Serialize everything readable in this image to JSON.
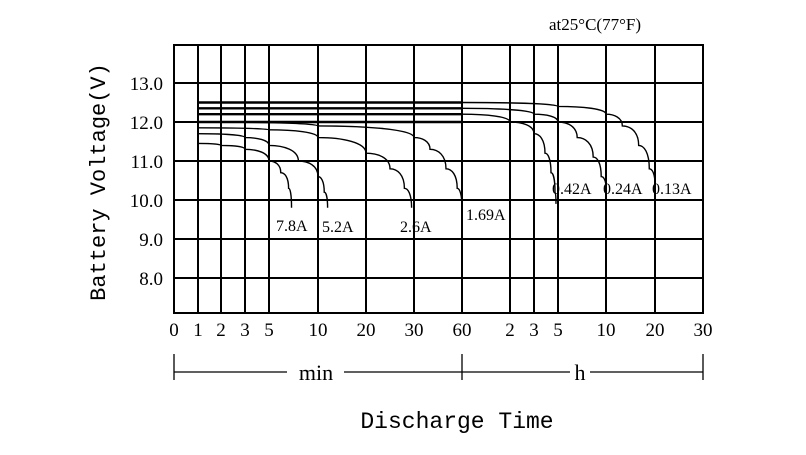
{
  "chart_data": {
    "type": "line",
    "title": "",
    "annotation": "at25°C(77°F)",
    "ylabel": "Battery Voltage(V)",
    "xlabel": "Discharge Time",
    "ylim": [
      7.0,
      14.0
    ],
    "y_ticks": [
      "13.0",
      "12.0",
      "11.0",
      "10.0",
      "9.0",
      "8.0"
    ],
    "x_ticks": [
      "0",
      "1",
      "2",
      "3",
      "5",
      "10",
      "20",
      "30",
      "60",
      "2",
      "3",
      "5",
      "10",
      "20",
      "30"
    ],
    "x_units": [
      {
        "label": "min",
        "range": [
          "0 min",
          "60 min"
        ]
      },
      {
        "label": "h",
        "range": [
          "60 min",
          "30 h"
        ]
      }
    ],
    "grid": true,
    "series": [
      {
        "name": "7.8A",
        "points": [
          [
            1,
            11.45
          ],
          [
            2,
            11.4
          ],
          [
            3,
            11.3
          ],
          [
            5,
            11.0
          ],
          [
            6.2,
            10.7
          ],
          [
            7,
            10.3
          ],
          [
            7.3,
            9.8
          ]
        ]
      },
      {
        "name": "5.2A",
        "points": [
          [
            1,
            11.7
          ],
          [
            3,
            11.6
          ],
          [
            5,
            11.4
          ],
          [
            8,
            11.0
          ],
          [
            10,
            10.6
          ],
          [
            11.3,
            10.2
          ],
          [
            12,
            9.8
          ]
        ]
      },
      {
        "name": "2.6A",
        "points": [
          [
            1,
            11.85
          ],
          [
            5,
            11.8
          ],
          [
            10,
            11.6
          ],
          [
            20,
            11.2
          ],
          [
            25,
            10.8
          ],
          [
            28,
            10.3
          ],
          [
            29.5,
            9.8
          ]
        ]
      },
      {
        "name": "1.69A",
        "points": [
          [
            1,
            12.0
          ],
          [
            10,
            11.9
          ],
          [
            30,
            11.6
          ],
          [
            40,
            11.3
          ],
          [
            50,
            10.8
          ],
          [
            57,
            10.3
          ],
          [
            60,
            9.8
          ]
        ]
      },
      {
        "name": "0.42A",
        "points": [
          [
            1,
            12.2
          ],
          [
            60,
            12.2
          ],
          [
            120,
            12.0
          ],
          [
            180,
            11.7
          ],
          [
            235,
            11.2
          ],
          [
            265,
            10.7
          ],
          [
            285,
            10.2
          ],
          [
            290,
            9.9
          ]
        ]
      },
      {
        "name": "0.24A",
        "points": [
          [
            1,
            12.35
          ],
          [
            60,
            12.35
          ],
          [
            180,
            12.2
          ],
          [
            300,
            12.0
          ],
          [
            420,
            11.6
          ],
          [
            520,
            11.1
          ],
          [
            570,
            10.6
          ],
          [
            600,
            10.3
          ]
        ]
      },
      {
        "name": "0.13A",
        "points": [
          [
            1,
            12.5
          ],
          [
            60,
            12.5
          ],
          [
            300,
            12.4
          ],
          [
            600,
            12.2
          ],
          [
            800,
            11.9
          ],
          [
            1000,
            11.4
          ],
          [
            1130,
            10.8
          ],
          [
            1200,
            10.4
          ]
        ]
      }
    ],
    "flat_lines": [
      12.0,
      12.2,
      12.35,
      12.5
    ]
  }
}
